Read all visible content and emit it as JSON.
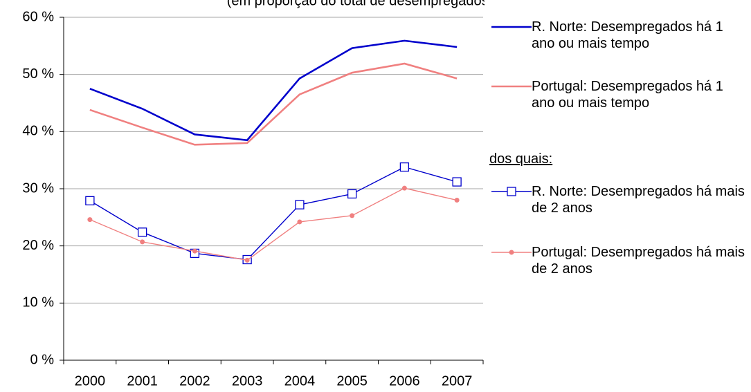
{
  "chart_data": {
    "type": "line",
    "title": "(em proporção do total de desempregados)",
    "categories": [
      "2000",
      "2001",
      "2002",
      "2003",
      "2004",
      "2005",
      "2006",
      "2007"
    ],
    "series": [
      {
        "name": "R. Norte: Desempregados há 1 ano ou mais tempo",
        "color": "#0000cc",
        "marker": "none",
        "values": [
          47.5,
          44.0,
          39.5,
          38.5,
          49.3,
          54.6,
          55.9,
          54.8
        ]
      },
      {
        "name": "Portugal: Desempregados há 1 ano ou mais tempo",
        "color": "#f08080",
        "marker": "none",
        "values": [
          43.8,
          40.7,
          37.7,
          38.0,
          46.5,
          50.3,
          51.9,
          49.3
        ]
      },
      {
        "name": "R. Norte: Desempregados há mais de 2 anos",
        "color": "#0000cc",
        "marker": "square",
        "values": [
          27.9,
          22.4,
          18.7,
          17.6,
          27.2,
          29.1,
          33.8,
          31.2
        ]
      },
      {
        "name": "Portugal: Desempregados há mais de 2 anos",
        "color": "#f08080",
        "marker": "circle",
        "values": [
          24.6,
          20.7,
          19.1,
          17.5,
          24.2,
          25.3,
          30.1,
          28.0
        ]
      }
    ],
    "legend_group_label": "dos quais:",
    "ylim": [
      0,
      60
    ],
    "yticks": [
      {
        "value": 0,
        "label": "0 %"
      },
      {
        "value": 10,
        "label": "10 %"
      },
      {
        "value": 20,
        "label": "20 %"
      },
      {
        "value": 30,
        "label": "30 %"
      },
      {
        "value": 40,
        "label": "40 %"
      },
      {
        "value": 50,
        "label": "50 %"
      },
      {
        "value": 60,
        "label": "60 %"
      }
    ],
    "grid": true,
    "legend": "right"
  }
}
